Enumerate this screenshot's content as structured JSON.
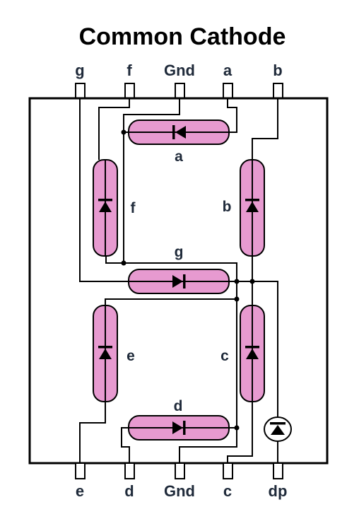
{
  "title": "Common Cathode",
  "top_pins": [
    "g",
    "f",
    "Gnd",
    "a",
    "b"
  ],
  "bottom_pins": [
    "e",
    "d",
    "Gnd",
    "c",
    "dp"
  ],
  "segments": {
    "a": "a",
    "b": "b",
    "c": "c",
    "d": "d",
    "e": "e",
    "f": "f",
    "g": "g"
  },
  "colors": {
    "segment_fill": "#e79ad0",
    "outline": "#000000",
    "label": "#1f2a3a"
  },
  "icons": [
    "diode-icon",
    "dp-diode-icon"
  ]
}
